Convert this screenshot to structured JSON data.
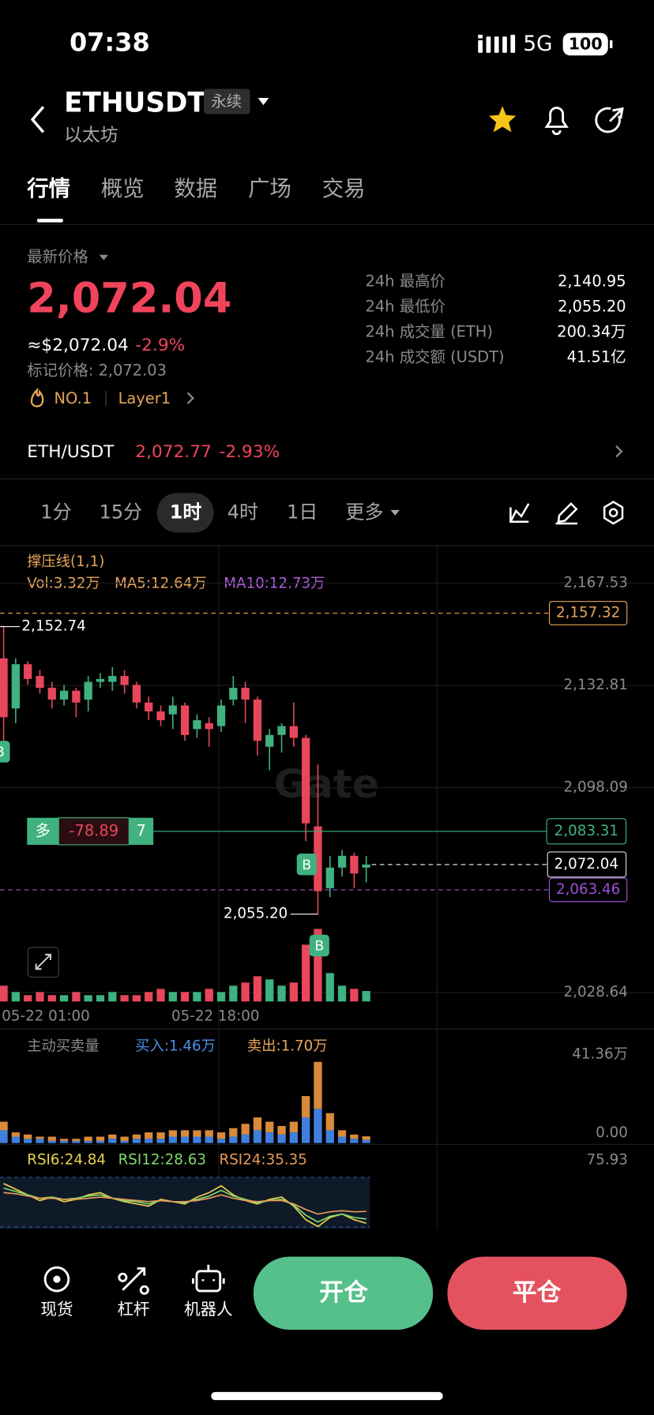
{
  "status": {
    "time": "07:38",
    "network": "5G",
    "battery": "100"
  },
  "header": {
    "symbol": "ETHUSDT",
    "tag": "永续",
    "name": "以太坊"
  },
  "tabs": [
    "行情",
    "概览",
    "数据",
    "广场",
    "交易"
  ],
  "price": {
    "label": "最新价格",
    "last": "2,072.04",
    "usd": "≈$2,072.04",
    "change": "-2.9%",
    "mark": "标记价格: 2,072.03",
    "rank": "NO.1",
    "sector": "Layer1"
  },
  "stats": [
    {
      "label": "24h 最高价",
      "value": "2,140.95"
    },
    {
      "label": "24h 最低价",
      "value": "2,055.20"
    },
    {
      "label": "24h 成交量 (ETH)",
      "value": "200.34万"
    },
    {
      "label": "24h 成交额 (USDT)",
      "value": "41.51亿"
    }
  ],
  "spot": {
    "pair": "ETH/USDT",
    "price": "2,072.77",
    "change": "-2.93%"
  },
  "intervals": [
    "1分",
    "15分",
    "1时",
    "4时",
    "1日",
    "更多"
  ],
  "chart_data": {
    "type": "candlestick",
    "indicator": "撑压线(1,1)",
    "volume_labels": {
      "vol": "Vol:3.32万",
      "ma5": "MA5:12.64万",
      "ma10": "MA10:12.73万"
    },
    "ylim": [
      2028.64,
      2167.53
    ],
    "yticks": [
      {
        "value": 2167.53,
        "label": "2,167.53"
      },
      {
        "value": 2132.81,
        "label": "2,132.81"
      },
      {
        "value": 2098.09,
        "label": "2,098.09"
      },
      {
        "value": 2028.64,
        "label": "2,028.64"
      }
    ],
    "x_labels": [
      "05-22 01:00",
      "05-22 18:00"
    ],
    "candles": {
      "open": [
        2142,
        2125,
        2140,
        2136,
        2132,
        2128,
        2131,
        2128,
        2134,
        2134,
        2136,
        2133,
        2127,
        2124,
        2123,
        2126,
        2118,
        2120,
        2119,
        2128,
        2132,
        2128,
        2112,
        2116,
        2119,
        2115,
        2085,
        2064,
        2071,
        2075,
        2071
      ],
      "high": [
        2152.74,
        2142,
        2141,
        2138,
        2134,
        2133,
        2132,
        2136,
        2137,
        2139,
        2138,
        2134,
        2129,
        2126,
        2129,
        2127,
        2123,
        2122,
        2128,
        2136,
        2134,
        2129,
        2118,
        2120,
        2127,
        2116,
        2106,
        2075,
        2077,
        2076,
        2075
      ],
      "low": [
        2112,
        2120,
        2133,
        2130,
        2125,
        2126,
        2122,
        2124,
        2132,
        2131,
        2130,
        2125,
        2121,
        2119,
        2118,
        2114,
        2115,
        2112,
        2117,
        2126,
        2120,
        2109,
        2104,
        2110,
        2112,
        2080,
        2055.2,
        2061,
        2068,
        2064,
        2066
      ],
      "close": [
        2122,
        2140,
        2135,
        2132,
        2128,
        2131,
        2127,
        2134,
        2135,
        2136,
        2133,
        2127,
        2124,
        2121,
        2126,
        2116,
        2121,
        2118,
        2126,
        2132,
        2128,
        2114,
        2116,
        2119,
        2115,
        2086,
        2063,
        2071,
        2075,
        2069,
        2072.04
      ]
    },
    "colors": {
      "up": "#3fb27f",
      "down": "#e8475b"
    },
    "levels": [
      {
        "value": 2157.32,
        "label": "2,157.32",
        "color": "#e7a55a"
      },
      {
        "value": 2063.46,
        "label": "2,063.46",
        "color": "#9b4fd6"
      }
    ],
    "last": {
      "value": 2072.04,
      "label": "2,072.04"
    },
    "high_note": {
      "value": 2152.74,
      "label": "2,152.74"
    },
    "low_note": {
      "value": 2055.2,
      "label": "2,055.20"
    },
    "position": {
      "side": "多",
      "pnl": -78.89,
      "qty": 7,
      "value": 2083.31,
      "label": "2,083.31"
    },
    "trade_markers": [
      "B",
      "B",
      "B"
    ],
    "watermark": "Gate",
    "volume": {
      "values": [
        5,
        3,
        2,
        3,
        2,
        2,
        3,
        2,
        2,
        3,
        2,
        2,
        3,
        4,
        3,
        3,
        3,
        4,
        3,
        5,
        6,
        8,
        7,
        5,
        6,
        18,
        23,
        9,
        5,
        4,
        3.32
      ]
    },
    "flow": {
      "title": "主动买卖量",
      "buy_label": "买入:1.46万",
      "sell_label": "卖出:1.70万",
      "ylim": [
        0,
        41.36
      ],
      "yticks": [
        {
          "value": 41.36,
          "label": "41.36万"
        },
        {
          "value": 0,
          "label": "0.00"
        }
      ],
      "buy": [
        6,
        3,
        2,
        2,
        1,
        1,
        1,
        1,
        1,
        2,
        1,
        2,
        2,
        2,
        3,
        3,
        3,
        3,
        2,
        3,
        4,
        6,
        5,
        4,
        5,
        12,
        16,
        6,
        3,
        2,
        1.46
      ],
      "sell": [
        4,
        2,
        2,
        1,
        2,
        1,
        1,
        2,
        2,
        2,
        2,
        2,
        3,
        3,
        3,
        3,
        3,
        3,
        3,
        4,
        5,
        6,
        5,
        4,
        5,
        10,
        22,
        8,
        3,
        2,
        1.7
      ],
      "colors": {
        "buy": "#3f7fe0",
        "sell": "#d98a3a"
      }
    },
    "rsi": {
      "ylim": [
        20,
        75.93
      ],
      "yticks": [
        75.93
      ],
      "series": [
        {
          "label": "RSI6:24.84",
          "color": "#e8d04a",
          "values": [
            60,
            55,
            50,
            45,
            48,
            44,
            46,
            50,
            52,
            47,
            44,
            42,
            40,
            46,
            44,
            42,
            48,
            52,
            58,
            50,
            45,
            42,
            46,
            48,
            40,
            28,
            22,
            30,
            33,
            28,
            24.84
          ]
        },
        {
          "label": "RSI12:28.63",
          "color": "#7fd86a",
          "values": [
            56,
            53,
            50,
            47,
            48,
            46,
            47,
            49,
            50,
            47,
            45,
            44,
            42,
            45,
            44,
            43,
            46,
            49,
            54,
            49,
            46,
            43,
            45,
            46,
            41,
            32,
            26,
            31,
            33,
            30,
            28.63
          ]
        },
        {
          "label": "RSI24:35.35",
          "color": "#e79a5a",
          "values": [
            52,
            51,
            49,
            47,
            47,
            46,
            46,
            47,
            48,
            47,
            46,
            45,
            44,
            45,
            44,
            44,
            45,
            47,
            50,
            47,
            45,
            44,
            45,
            45,
            42,
            37,
            33,
            35,
            36,
            35,
            35.35
          ]
        }
      ]
    }
  },
  "actions": [
    "现货",
    "杠杆",
    "机器人"
  ],
  "buttons": {
    "open": "开仓",
    "close": "平仓"
  }
}
